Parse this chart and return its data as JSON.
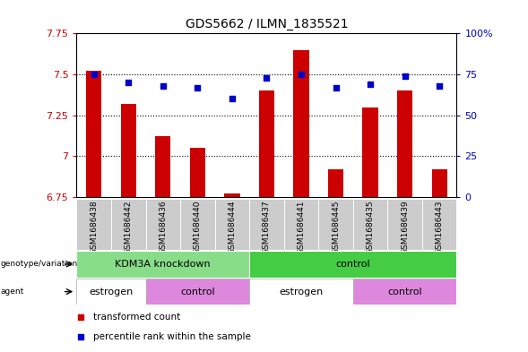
{
  "title": "GDS5662 / ILMN_1835521",
  "samples": [
    "GSM1686438",
    "GSM1686442",
    "GSM1686436",
    "GSM1686440",
    "GSM1686444",
    "GSM1686437",
    "GSM1686441",
    "GSM1686445",
    "GSM1686435",
    "GSM1686439",
    "GSM1686443"
  ],
  "bar_values": [
    7.52,
    7.32,
    7.12,
    7.05,
    6.77,
    7.4,
    7.65,
    6.92,
    7.3,
    7.4,
    6.92
  ],
  "dot_values": [
    75,
    70,
    68,
    67,
    60,
    73,
    75,
    67,
    69,
    74,
    68
  ],
  "ylim_left": [
    6.75,
    7.75
  ],
  "ylim_right": [
    0,
    100
  ],
  "yticks_left": [
    6.75,
    7.0,
    7.25,
    7.5,
    7.75
  ],
  "yticks_right": [
    0,
    25,
    50,
    75,
    100
  ],
  "ytick_labels_left": [
    "6.75",
    "7",
    "7.25",
    "7.5",
    "7.75"
  ],
  "ytick_labels_right": [
    "0",
    "25",
    "50",
    "75",
    "100%"
  ],
  "bar_color": "#cc0000",
  "dot_color": "#0000cc",
  "bar_bottom": 6.75,
  "genotype_groups": [
    {
      "label": "KDM3A knockdown",
      "start": 0,
      "end": 5,
      "color": "#88dd88"
    },
    {
      "label": "control",
      "start": 5,
      "end": 11,
      "color": "#44cc44"
    }
  ],
  "agent_groups": [
    {
      "label": "estrogen",
      "start": 0,
      "end": 2,
      "color": "#ffffff"
    },
    {
      "label": "control",
      "start": 2,
      "end": 5,
      "color": "#dd88dd"
    },
    {
      "label": "estrogen",
      "start": 5,
      "end": 8,
      "color": "#ffffff"
    },
    {
      "label": "control",
      "start": 8,
      "end": 11,
      "color": "#dd88dd"
    }
  ],
  "legend_items": [
    {
      "label": "transformed count",
      "color": "#cc0000"
    },
    {
      "label": "percentile rank within the sample",
      "color": "#0000cc"
    }
  ],
  "bg_color": "#ffffff",
  "plot_bg": "#ffffff",
  "tick_color_left": "#cc0000",
  "tick_color_right": "#0000bb",
  "sample_bg": "#cccccc"
}
